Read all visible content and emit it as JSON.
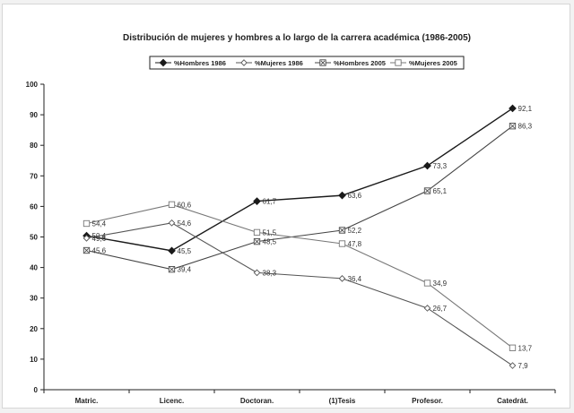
{
  "chart_data": {
    "type": "line",
    "title": "Distribución de mujeres y hombres a lo largo de la carrera académica (1986-2005)",
    "xlabel": "",
    "ylabel": "",
    "categories": [
      "Matric.",
      "Licenc.",
      "Doctoran.",
      "(1)Tesis",
      "Profesor.",
      "Catedrát."
    ],
    "ylim": [
      0,
      100
    ],
    "yticks": [
      0,
      10,
      20,
      30,
      40,
      50,
      60,
      70,
      80,
      90,
      100
    ],
    "grid": false,
    "legend_position": "top",
    "series": [
      {
        "name": "%Hombres 1986",
        "values": [
          50.4,
          45.5,
          61.7,
          63.6,
          73.3,
          92.1
        ],
        "labels": [
          "50,4",
          "45,5",
          "61,7",
          "63,6",
          "73,3",
          "92,1"
        ],
        "marker": "filled-diamond",
        "color": "#1a1a1a"
      },
      {
        "name": "%Mujeres 1986",
        "values": [
          49.6,
          54.6,
          38.3,
          36.4,
          26.7,
          7.9
        ],
        "labels": [
          "49,6",
          "54,6",
          "38,3",
          "36,4",
          "26,7",
          "7,9"
        ],
        "marker": "open-diamond",
        "color": "#555555"
      },
      {
        "name": "%Hombres 2005",
        "values": [
          45.6,
          39.4,
          48.5,
          52.2,
          65.1,
          86.3
        ],
        "labels": [
          "45,6",
          "39,4",
          "48,5",
          "52,2",
          "65,1",
          "86,3"
        ],
        "marker": "square-x",
        "color": "#444444"
      },
      {
        "name": "%Mujeres 2005",
        "values": [
          54.4,
          60.6,
          51.5,
          47.8,
          34.9,
          13.7
        ],
        "labels": [
          "54,4",
          "60,6",
          "51,5",
          "47,8",
          "34,9",
          "13,7"
        ],
        "marker": "open-square",
        "color": "#777777"
      }
    ]
  }
}
